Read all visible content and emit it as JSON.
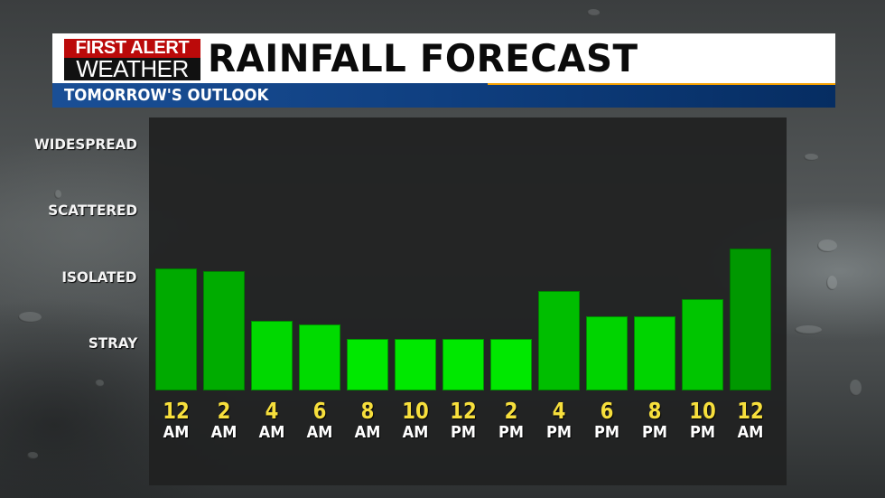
{
  "header": {
    "logo_top": "FIRST ALERT",
    "logo_bottom": "WEATHER",
    "title": "RAINFALL FORECAST",
    "subtitle": "TOMORROW'S OUTLOOK"
  },
  "colors": {
    "logo_red": "#bb0a0a",
    "header_blue": "#0f3f80",
    "accent_orange": "#f5a000",
    "label_yellow": "#f7df3c",
    "bar_green_dark": "#00a000",
    "bar_green_bright": "#00e800"
  },
  "y_axis": {
    "levels": [
      "STRAY",
      "ISOLATED",
      "SCATTERED",
      "WIDESPREAD"
    ]
  },
  "x_axis": {
    "ticks": [
      {
        "num": "12",
        "ampm": "AM"
      },
      {
        "num": "2",
        "ampm": "AM"
      },
      {
        "num": "4",
        "ampm": "AM"
      },
      {
        "num": "6",
        "ampm": "AM"
      },
      {
        "num": "8",
        "ampm": "AM"
      },
      {
        "num": "10",
        "ampm": "AM"
      },
      {
        "num": "12",
        "ampm": "PM"
      },
      {
        "num": "2",
        "ampm": "PM"
      },
      {
        "num": "4",
        "ampm": "PM"
      },
      {
        "num": "6",
        "ampm": "PM"
      },
      {
        "num": "8",
        "ampm": "PM"
      },
      {
        "num": "10",
        "ampm": "PM"
      },
      {
        "num": "12",
        "ampm": "AM"
      }
    ]
  },
  "chart_data": {
    "type": "bar",
    "title": "RAINFALL FORECAST",
    "subtitle": "TOMORROW'S OUTLOOK",
    "xlabel": "",
    "ylabel": "",
    "categories": [
      "12 AM",
      "2 AM",
      "4 AM",
      "6 AM",
      "8 AM",
      "10 AM",
      "12 PM",
      "2 PM",
      "4 PM",
      "6 PM",
      "8 PM",
      "10 PM",
      "12 AM"
    ],
    "values": [
      2.14,
      2.1,
      1.35,
      1.3,
      1.08,
      1.08,
      1.08,
      1.08,
      1.8,
      1.42,
      1.42,
      1.68,
      2.44
    ],
    "y_scale_note": "1 = STRAY, 2 = ISOLATED, 3 = SCATTERED, 4 = WIDESPREAD",
    "yticks": [
      {
        "value": 1,
        "label": "STRAY"
      },
      {
        "value": 2,
        "label": "ISOLATED"
      },
      {
        "value": 3,
        "label": "SCATTERED"
      },
      {
        "value": 4,
        "label": "WIDESPREAD"
      }
    ],
    "ylim": [
      0.3,
      4.4
    ],
    "grid": false,
    "legend": null
  }
}
